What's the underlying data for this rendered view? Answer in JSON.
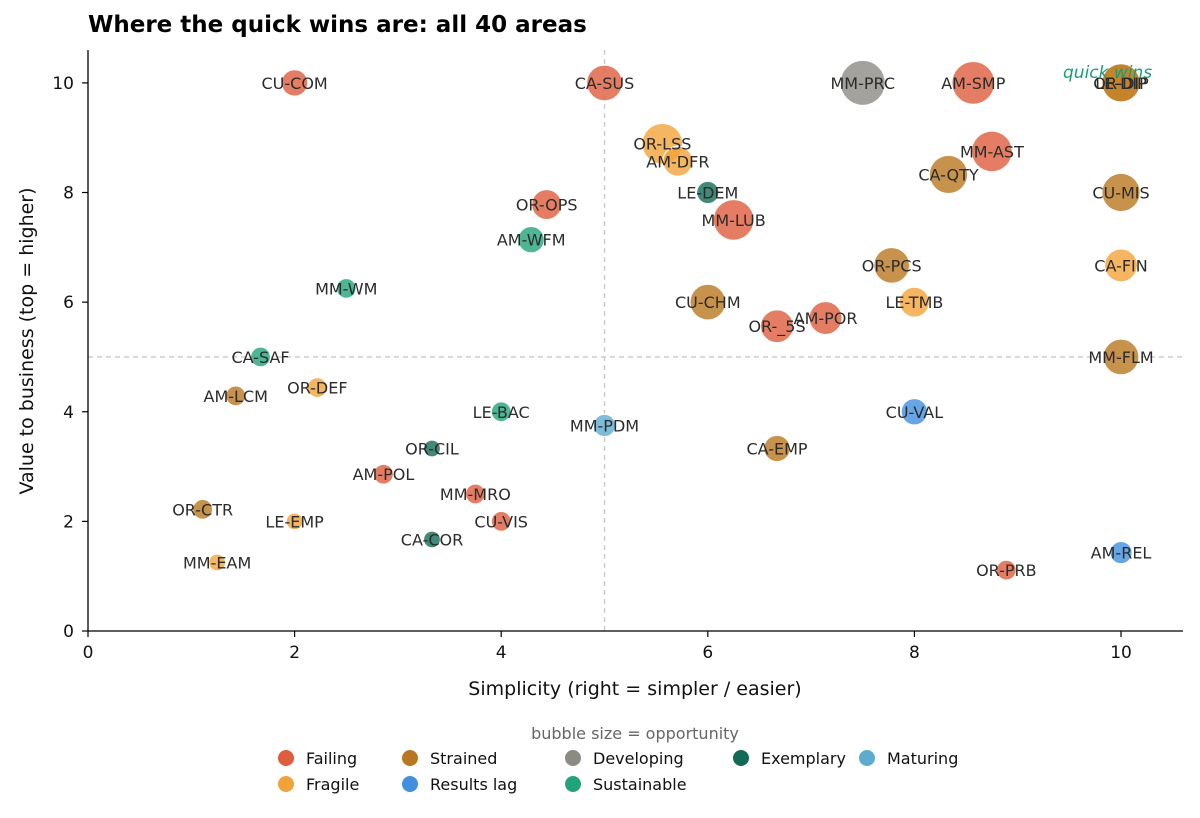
{
  "chart_data": {
    "type": "scatter",
    "title": "Where the quick wins are: all 40 areas",
    "xlabel": "Simplicity  (right = simpler / easier)",
    "ylabel": "Value to business  (top = higher)",
    "xlim": [
      0,
      10.6
    ],
    "ylim": [
      0,
      10.6
    ],
    "xticks": [
      0,
      2,
      4,
      6,
      8,
      10
    ],
    "yticks": [
      0,
      2,
      4,
      6,
      8,
      10
    ],
    "reference_lines": {
      "x": 5,
      "y": 5
    },
    "annotation": {
      "text": "quick wins",
      "x": 9.87,
      "y": 10.2,
      "color": "#1a9c75"
    },
    "size_note": "bubble size = opportunity",
    "categories": [
      {
        "name": "Failing",
        "color": "#dd5d3c"
      },
      {
        "name": "Fragile",
        "color": "#f2a23a"
      },
      {
        "name": "Strained",
        "color": "#b9771f"
      },
      {
        "name": "Results lag",
        "color": "#418fdf"
      },
      {
        "name": "Developing",
        "color": "#8c8b83"
      },
      {
        "name": "Sustainable",
        "color": "#22a37b"
      },
      {
        "name": "Exemplary",
        "color": "#136b55"
      },
      {
        "name": "Maturing",
        "color": "#5fabd0"
      }
    ],
    "legend_order": [
      "Failing",
      "Strained",
      "Developing",
      "Exemplary",
      "Maturing",
      "Fragile",
      "Results lag",
      "Sustainable"
    ],
    "points": [
      {
        "label": "MM-PRC",
        "x": 7.5,
        "y": 10.0,
        "status": "Developing",
        "opportunity": 10
      },
      {
        "label": "AM-SMP",
        "x": 8.57,
        "y": 10.0,
        "status": "Failing",
        "opportunity": 9
      },
      {
        "label": "MM-AST",
        "x": 8.75,
        "y": 8.75,
        "status": "Failing",
        "opportunity": 8
      },
      {
        "label": "OR-DIP",
        "x": 10.0,
        "y": 10.0,
        "status": "Fragile",
        "opportunity": 7
      },
      {
        "label": "LE-DIP",
        "x": 10.0,
        "y": 10.0,
        "status": "Strained",
        "opportunity": 7
      },
      {
        "label": "MM-LUB",
        "x": 6.25,
        "y": 7.5,
        "status": "Failing",
        "opportunity": 8
      },
      {
        "label": "OR-LSS",
        "x": 5.56,
        "y": 8.89,
        "status": "Fragile",
        "opportunity": 8
      },
      {
        "label": "CA-QTY",
        "x": 8.33,
        "y": 8.33,
        "status": "Strained",
        "opportunity": 7
      },
      {
        "label": "CU-MIS",
        "x": 10.0,
        "y": 8.0,
        "status": "Strained",
        "opportunity": 7
      },
      {
        "label": "CA-SUS",
        "x": 5.0,
        "y": 10.0,
        "status": "Failing",
        "opportunity": 6
      },
      {
        "label": "CU-CHM",
        "x": 6.0,
        "y": 6.0,
        "status": "Strained",
        "opportunity": 6
      },
      {
        "label": "OR-PCS",
        "x": 7.78,
        "y": 6.67,
        "status": "Strained",
        "opportunity": 6
      },
      {
        "label": "MM-FLM",
        "x": 10.0,
        "y": 5.0,
        "status": "Strained",
        "opportunity": 6
      },
      {
        "label": "CA-FIN",
        "x": 10.0,
        "y": 6.67,
        "status": "Fragile",
        "opportunity": 5
      },
      {
        "label": "AM-POR",
        "x": 7.14,
        "y": 5.71,
        "status": "Failing",
        "opportunity": 5
      },
      {
        "label": "OR-_5S",
        "x": 6.67,
        "y": 5.56,
        "status": "Failing",
        "opportunity": 5
      },
      {
        "label": "AM-DFR",
        "x": 5.71,
        "y": 8.57,
        "status": "Fragile",
        "opportunity": 4
      },
      {
        "label": "OR-OPS",
        "x": 4.44,
        "y": 7.78,
        "status": "Failing",
        "opportunity": 4
      },
      {
        "label": "LE-TMB",
        "x": 8.0,
        "y": 6.0,
        "status": "Fragile",
        "opportunity": 4
      },
      {
        "label": "CU-COM",
        "x": 2.0,
        "y": 10.0,
        "status": "Failing",
        "opportunity": 3
      },
      {
        "label": "CA-EMP",
        "x": 6.67,
        "y": 3.33,
        "status": "Strained",
        "opportunity": 3
      },
      {
        "label": "CU-VAL",
        "x": 8.0,
        "y": 4.0,
        "status": "Results lag",
        "opportunity": 3
      },
      {
        "label": "AM-WFM",
        "x": 4.29,
        "y": 7.14,
        "status": "Sustainable",
        "opportunity": 3
      },
      {
        "label": "LE-DEM",
        "x": 6.0,
        "y": 8.0,
        "status": "Exemplary",
        "opportunity": 2
      },
      {
        "label": "MM-PDM",
        "x": 5.0,
        "y": 3.75,
        "status": "Maturing",
        "opportunity": 2
      },
      {
        "label": "AM-REL",
        "x": 10.0,
        "y": 1.43,
        "status": "Results lag",
        "opportunity": 2
      },
      {
        "label": "OR-PRB",
        "x": 8.89,
        "y": 1.11,
        "status": "Failing",
        "opportunity": 1.5
      },
      {
        "label": "MM-MRO",
        "x": 3.75,
        "y": 2.5,
        "status": "Failing",
        "opportunity": 1.5
      },
      {
        "label": "CU-VIS",
        "x": 4.0,
        "y": 2.0,
        "status": "Failing",
        "opportunity": 1.5
      },
      {
        "label": "AM-POL",
        "x": 2.86,
        "y": 2.86,
        "status": "Failing",
        "opportunity": 1.5
      },
      {
        "label": "MM-WM",
        "x": 2.5,
        "y": 6.25,
        "status": "Sustainable",
        "opportunity": 1.5
      },
      {
        "label": "LE-BAC",
        "x": 4.0,
        "y": 4.0,
        "status": "Sustainable",
        "opportunity": 1.5
      },
      {
        "label": "CA-SAF",
        "x": 1.67,
        "y": 5.0,
        "status": "Sustainable",
        "opportunity": 1.5
      },
      {
        "label": "OR-DEF",
        "x": 2.22,
        "y": 4.44,
        "status": "Fragile",
        "opportunity": 1.5
      },
      {
        "label": "AM-LCM",
        "x": 1.43,
        "y": 4.29,
        "status": "Strained",
        "opportunity": 1.5
      },
      {
        "label": "OR-CTR",
        "x": 1.11,
        "y": 2.22,
        "status": "Strained",
        "opportunity": 1.5
      },
      {
        "label": "LE-EMP",
        "x": 2.0,
        "y": 2.0,
        "status": "Fragile",
        "opportunity": 1
      },
      {
        "label": "MM-EAM",
        "x": 1.25,
        "y": 1.25,
        "status": "Fragile",
        "opportunity": 1
      },
      {
        "label": "OR-CIL",
        "x": 3.33,
        "y": 3.33,
        "status": "Exemplary",
        "opportunity": 1
      },
      {
        "label": "CA-COR",
        "x": 3.33,
        "y": 1.67,
        "status": "Exemplary",
        "opportunity": 1
      }
    ]
  }
}
